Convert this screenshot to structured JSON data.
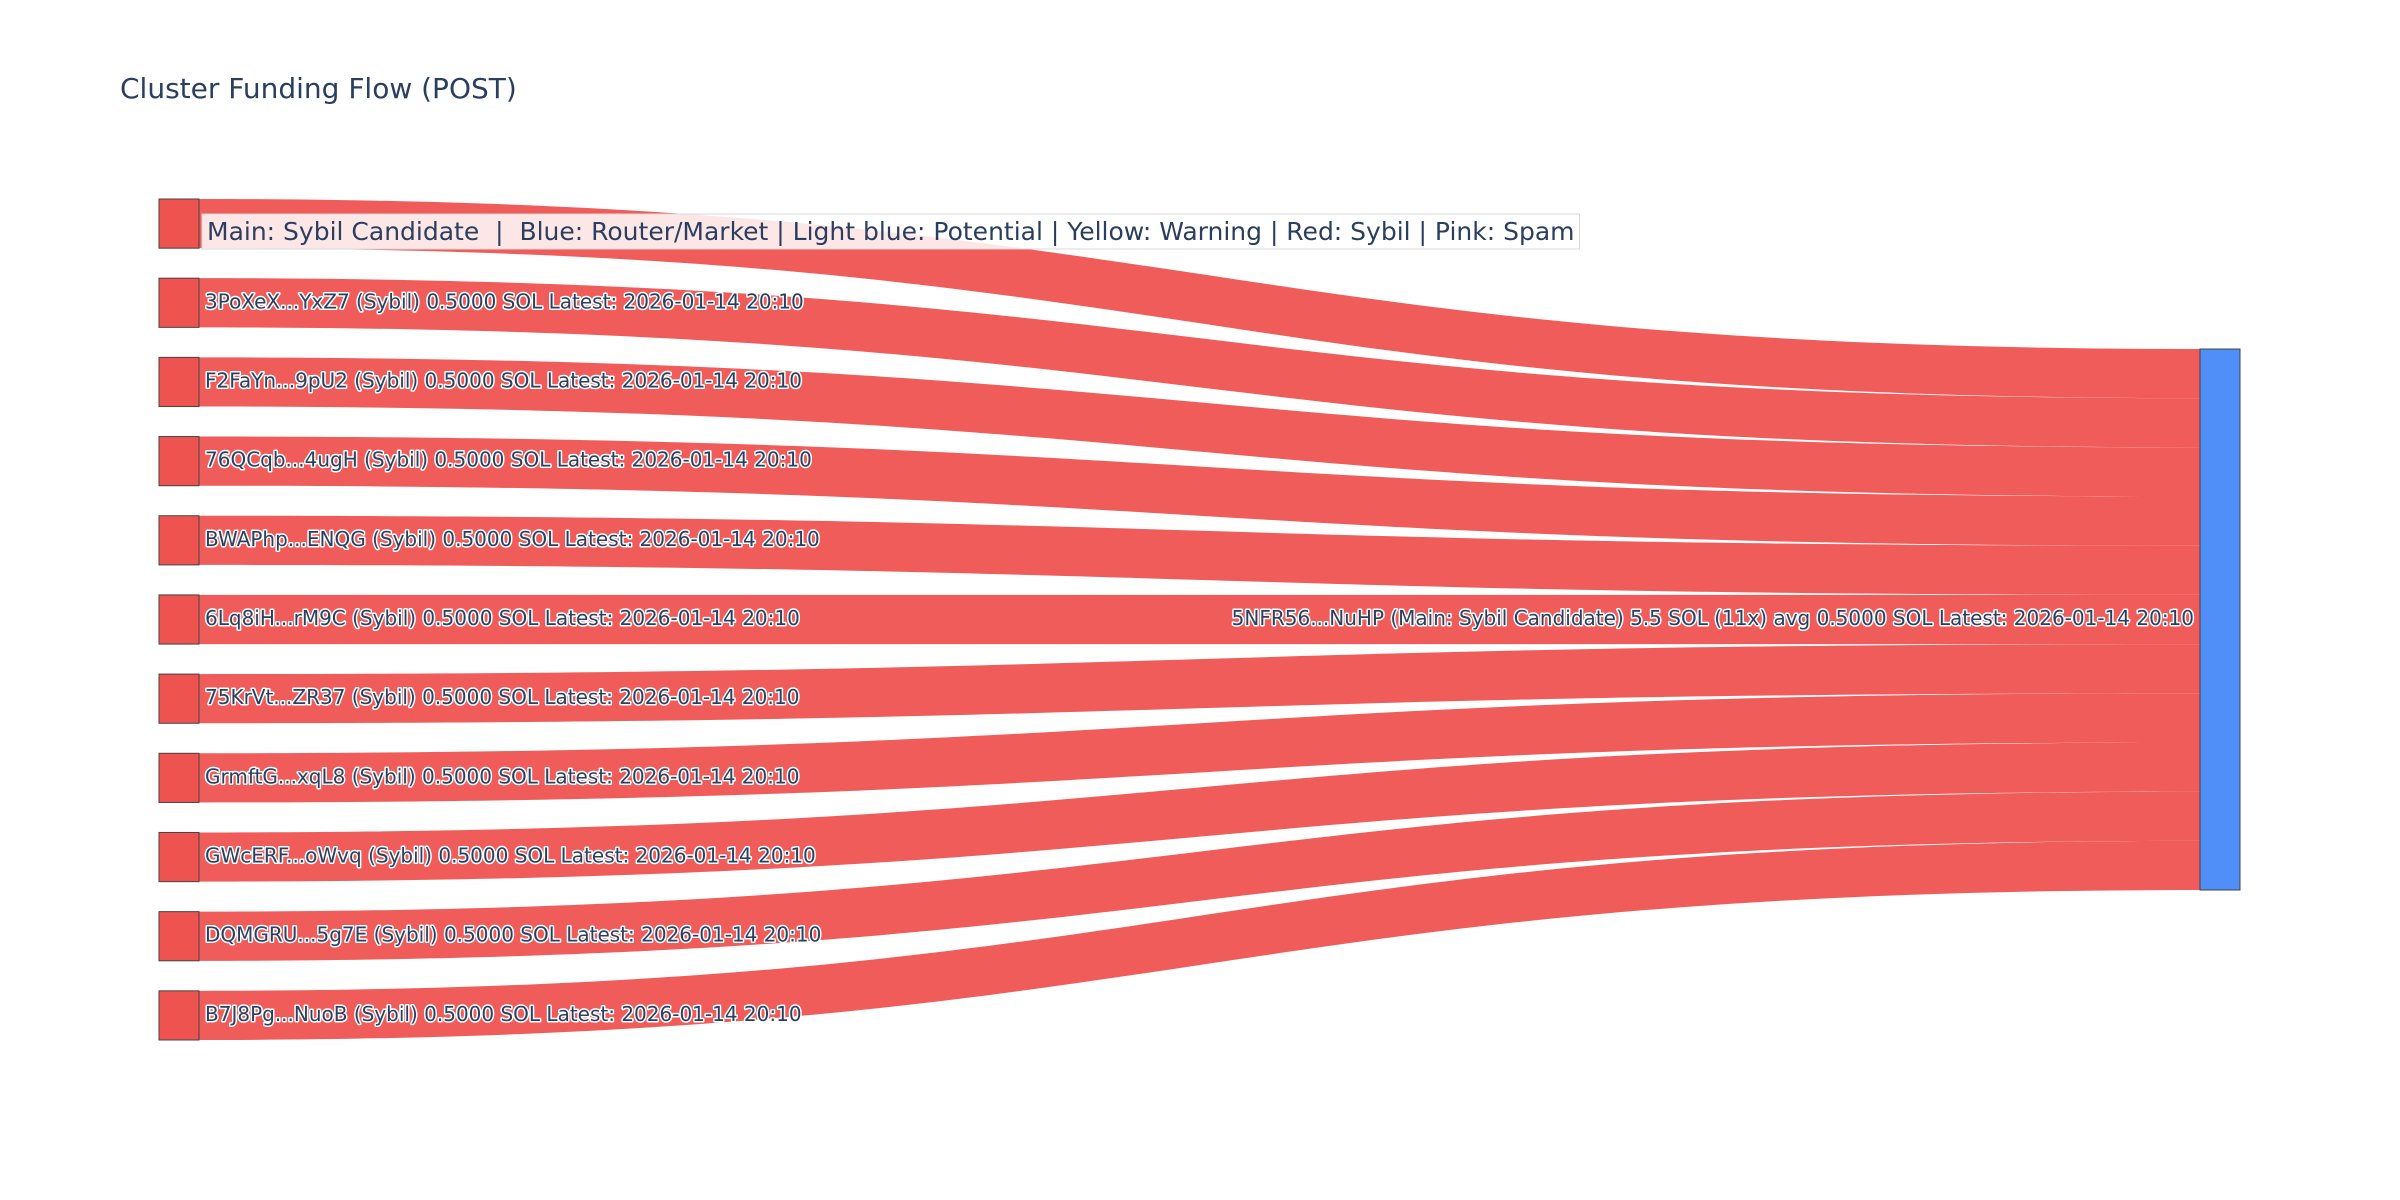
{
  "chart_data": {
    "type": "sankey",
    "title": "Cluster Funding Flow (POST)",
    "annotation": "Main: Sybil Candidate  |  Blue: Router/Market | Light blue: Potential | Yellow: Warning | Red: Sybil | Pink: Spam",
    "nodes": [
      {
        "label": null,
        "color": "#ef5350"
      },
      {
        "label": "3PoXeX...YxZ7 (Sybil) 0.5000 SOL Latest: 2026-01-14 20:10",
        "color": "#ef5350"
      },
      {
        "label": "F2FaYn...9pU2 (Sybil) 0.5000 SOL Latest: 2026-01-14 20:10",
        "color": "#ef5350"
      },
      {
        "label": "76QCqb...4ugH (Sybil) 0.5000 SOL Latest: 2026-01-14 20:10",
        "color": "#ef5350"
      },
      {
        "label": "BWAPhp...ENQG (Sybil) 0.5000 SOL Latest: 2026-01-14 20:10",
        "color": "#ef5350"
      },
      {
        "label": "6Lq8iH...rM9C (Sybil) 0.5000 SOL Latest: 2026-01-14 20:10",
        "color": "#ef5350"
      },
      {
        "label": "75KrVt...ZR37 (Sybil) 0.5000 SOL Latest: 2026-01-14 20:10",
        "color": "#ef5350"
      },
      {
        "label": "GrmftG...xqL8 (Sybil) 0.5000 SOL Latest: 2026-01-14 20:10",
        "color": "#ef5350"
      },
      {
        "label": "GWcERF...oWvq (Sybil) 0.5000 SOL Latest: 2026-01-14 20:10",
        "color": "#ef5350"
      },
      {
        "label": "DQMGRU...5g7E (Sybil) 0.5000 SOL Latest: 2026-01-14 20:10",
        "color": "#ef5350"
      },
      {
        "label": "B7J8Pg...NuoB (Sybil) 0.5000 SOL Latest: 2026-01-14 20:10",
        "color": "#ef5350"
      },
      {
        "label": "5NFR56...NuHP (Main: Sybil Candidate) 5.5 SOL (11x) avg 0.5000 SOL Latest: 2026-01-14 20:10",
        "color": "#4f8ff7"
      }
    ],
    "links": [
      {
        "source": 0,
        "target": 11,
        "value": 0.5,
        "color": "#ef5350"
      },
      {
        "source": 1,
        "target": 11,
        "value": 0.5,
        "color": "#ef5350"
      },
      {
        "source": 2,
        "target": 11,
        "value": 0.5,
        "color": "#ef5350"
      },
      {
        "source": 3,
        "target": 11,
        "value": 0.5,
        "color": "#ef5350"
      },
      {
        "source": 4,
        "target": 11,
        "value": 0.5,
        "color": "#ef5350"
      },
      {
        "source": 5,
        "target": 11,
        "value": 0.5,
        "color": "#ef5350"
      },
      {
        "source": 6,
        "target": 11,
        "value": 0.5,
        "color": "#ef5350"
      },
      {
        "source": 7,
        "target": 11,
        "value": 0.5,
        "color": "#ef5350"
      },
      {
        "source": 8,
        "target": 11,
        "value": 0.5,
        "color": "#ef5350"
      },
      {
        "source": 9,
        "target": 11,
        "value": 0.5,
        "color": "#ef5350"
      },
      {
        "source": 10,
        "target": 11,
        "value": 0.5,
        "color": "#ef5350"
      }
    ]
  }
}
